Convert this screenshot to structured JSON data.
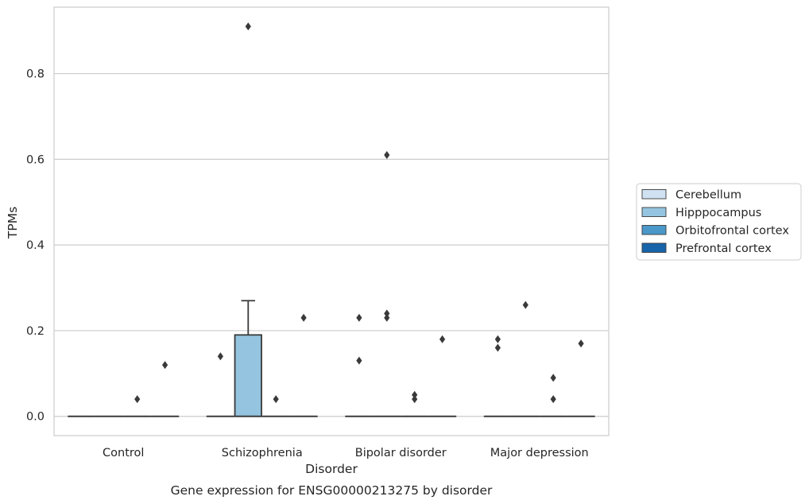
{
  "chart_data": {
    "type": "box",
    "title": "Gene expression for ENSG00000213275 by disorder",
    "xlabel": "Disorder",
    "ylabel": "TPMs",
    "categories": [
      "Control",
      "Schizophrenia",
      "Bipolar disorder",
      "Major depression"
    ],
    "ylim": [
      -0.045,
      0.955
    ],
    "yticks": [
      0.0,
      0.2,
      0.4,
      0.6,
      0.8
    ],
    "ytick_labels": [
      "0.0",
      "0.2",
      "0.4",
      "0.6",
      "0.8"
    ],
    "grid": "horizontal",
    "legend_position": "right",
    "series": [
      {
        "name": "Cerebellum",
        "color": "#d0e1f2"
      },
      {
        "name": "Hipppocampus",
        "color": "#94c4df"
      },
      {
        "name": "Orbitofrontal cortex",
        "color": "#4a98c9"
      },
      {
        "name": "Prefrontal cortex",
        "color": "#1764ab"
      }
    ],
    "boxes": [
      {
        "category": "Control",
        "series": "Cerebellum",
        "q1": 0,
        "median": 0,
        "q3": 0,
        "whisker_low": 0,
        "whisker_high": 0,
        "outliers": []
      },
      {
        "category": "Control",
        "series": "Hipppocampus",
        "q1": 0,
        "median": 0,
        "q3": 0,
        "whisker_low": 0,
        "whisker_high": 0,
        "outliers": []
      },
      {
        "category": "Control",
        "series": "Orbitofrontal cortex",
        "q1": 0,
        "median": 0,
        "q3": 0,
        "whisker_low": 0,
        "whisker_high": 0,
        "outliers": [
          0.04
        ]
      },
      {
        "category": "Control",
        "series": "Prefrontal cortex",
        "q1": 0,
        "median": 0,
        "q3": 0,
        "whisker_low": 0,
        "whisker_high": 0,
        "outliers": [
          0.12
        ]
      },
      {
        "category": "Schizophrenia",
        "series": "Cerebellum",
        "q1": 0,
        "median": 0,
        "q3": 0,
        "whisker_low": 0,
        "whisker_high": 0,
        "outliers": [
          0.14
        ]
      },
      {
        "category": "Schizophrenia",
        "series": "Hipppocampus",
        "q1": 0,
        "median": 0,
        "q3": 0.19,
        "whisker_low": 0,
        "whisker_high": 0.27,
        "outliers": [
          0.91
        ]
      },
      {
        "category": "Schizophrenia",
        "series": "Orbitofrontal cortex",
        "q1": 0,
        "median": 0,
        "q3": 0,
        "whisker_low": 0,
        "whisker_high": 0,
        "outliers": [
          0.04
        ]
      },
      {
        "category": "Schizophrenia",
        "series": "Prefrontal cortex",
        "q1": 0,
        "median": 0,
        "q3": 0,
        "whisker_low": 0,
        "whisker_high": 0,
        "outliers": [
          0.23
        ]
      },
      {
        "category": "Bipolar disorder",
        "series": "Cerebellum",
        "q1": 0,
        "median": 0,
        "q3": 0,
        "whisker_low": 0,
        "whisker_high": 0,
        "outliers": [
          0.23,
          0.13
        ]
      },
      {
        "category": "Bipolar disorder",
        "series": "Hipppocampus",
        "q1": 0,
        "median": 0,
        "q3": 0,
        "whisker_low": 0,
        "whisker_high": 0,
        "outliers": [
          0.61,
          0.24,
          0.23
        ]
      },
      {
        "category": "Bipolar disorder",
        "series": "Orbitofrontal cortex",
        "q1": 0,
        "median": 0,
        "q3": 0,
        "whisker_low": 0,
        "whisker_high": 0,
        "outliers": [
          0.05,
          0.04
        ]
      },
      {
        "category": "Bipolar disorder",
        "series": "Prefrontal cortex",
        "q1": 0,
        "median": 0,
        "q3": 0,
        "whisker_low": 0,
        "whisker_high": 0,
        "outliers": [
          0.18
        ]
      },
      {
        "category": "Major depression",
        "series": "Cerebellum",
        "q1": 0,
        "median": 0,
        "q3": 0,
        "whisker_low": 0,
        "whisker_high": 0,
        "outliers": [
          0.18,
          0.16
        ]
      },
      {
        "category": "Major depression",
        "series": "Hipppocampus",
        "q1": 0,
        "median": 0,
        "q3": 0,
        "whisker_low": 0,
        "whisker_high": 0,
        "outliers": [
          0.26
        ]
      },
      {
        "category": "Major depression",
        "series": "Orbitofrontal cortex",
        "q1": 0,
        "median": 0,
        "q3": 0,
        "whisker_low": 0,
        "whisker_high": 0,
        "outliers": [
          0.09,
          0.04
        ]
      },
      {
        "category": "Major depression",
        "series": "Prefrontal cortex",
        "q1": 0,
        "median": 0,
        "q3": 0,
        "whisker_low": 0,
        "whisker_high": 0,
        "outliers": [
          0.17
        ]
      }
    ]
  }
}
